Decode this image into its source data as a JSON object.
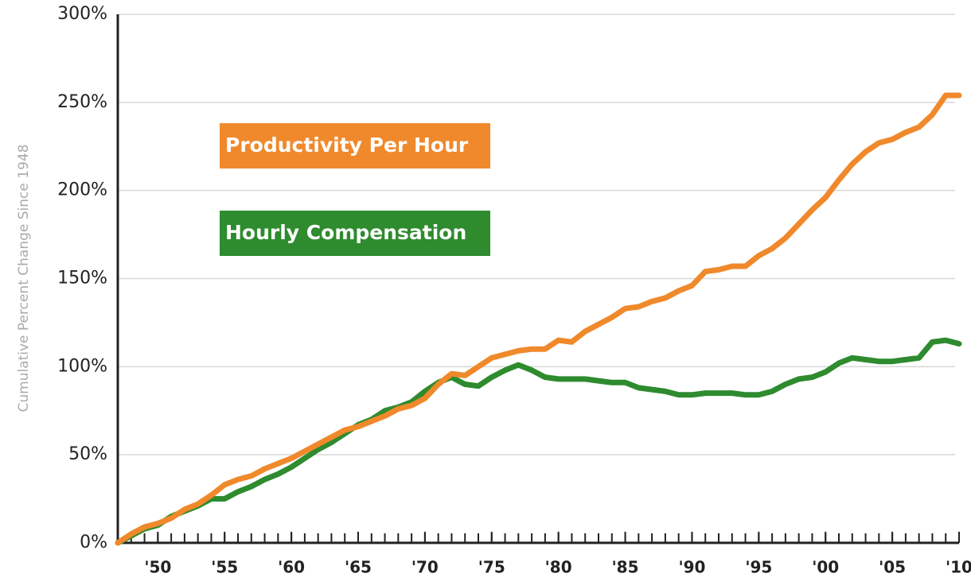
{
  "chart_data": {
    "type": "line",
    "y_label": "Cumulative Percent Change Since 1948",
    "x": [
      1947,
      1948,
      1949,
      1950,
      1951,
      1952,
      1953,
      1954,
      1955,
      1956,
      1957,
      1958,
      1959,
      1960,
      1961,
      1962,
      1963,
      1964,
      1965,
      1966,
      1967,
      1968,
      1969,
      1970,
      1971,
      1972,
      1973,
      1974,
      1975,
      1976,
      1977,
      1978,
      1979,
      1980,
      1981,
      1982,
      1983,
      1984,
      1985,
      1986,
      1987,
      1988,
      1989,
      1990,
      1991,
      1992,
      1993,
      1994,
      1995,
      1996,
      1997,
      1998,
      1999,
      2000,
      2001,
      2002,
      2003,
      2004,
      2005,
      2006,
      2007,
      2008,
      2009,
      2010
    ],
    "series": [
      {
        "name": "Productivity Per Hour",
        "color": "#f0892b",
        "values": [
          0,
          5,
          9,
          11,
          14,
          19,
          22,
          27,
          33,
          36,
          38,
          42,
          45,
          48,
          52,
          56,
          60,
          64,
          66,
          69,
          72,
          76,
          78,
          82,
          90,
          96,
          95,
          100,
          105,
          107,
          109,
          110,
          110,
          115,
          114,
          120,
          124,
          128,
          133,
          134,
          137,
          139,
          143,
          146,
          154,
          155,
          157,
          157,
          163,
          167,
          173,
          181,
          189,
          196,
          206,
          215,
          222,
          227,
          229,
          233,
          236,
          243,
          254,
          254
        ]
      },
      {
        "name": "Hourly Compensation",
        "color": "#2e8b2e",
        "values": [
          0,
          4,
          8,
          10,
          15,
          18,
          21,
          25,
          25,
          29,
          32,
          36,
          39,
          43,
          48,
          53,
          57,
          62,
          67,
          70,
          75,
          77,
          80,
          86,
          91,
          94,
          90,
          89,
          94,
          98,
          101,
          98,
          94,
          93,
          93,
          93,
          92,
          91,
          91,
          88,
          87,
          86,
          84,
          84,
          85,
          85,
          85,
          84,
          84,
          86,
          90,
          93,
          94,
          97,
          102,
          105,
          104,
          103,
          103,
          104,
          105,
          114,
          115,
          113
        ]
      }
    ],
    "xlim": [
      1947,
      2010
    ],
    "xticks": [
      {
        "value": 1950,
        "label": "'50"
      },
      {
        "value": 1955,
        "label": "'55"
      },
      {
        "value": 1960,
        "label": "'60"
      },
      {
        "value": 1965,
        "label": "'65"
      },
      {
        "value": 1970,
        "label": "'70"
      },
      {
        "value": 1975,
        "label": "'75"
      },
      {
        "value": 1980,
        "label": "'80"
      },
      {
        "value": 1985,
        "label": "'85"
      },
      {
        "value": 1990,
        "label": "'90"
      },
      {
        "value": 1995,
        "label": "'95"
      },
      {
        "value": 2000,
        "label": "'00"
      },
      {
        "value": 2005,
        "label": "'05"
      },
      {
        "value": 2010,
        "label": "'10"
      }
    ],
    "ylim": [
      0,
      300
    ],
    "yticks": [
      {
        "value": 0,
        "label": "0%"
      },
      {
        "value": 50,
        "label": "50%"
      },
      {
        "value": 100,
        "label": "100%"
      },
      {
        "value": 150,
        "label": "150%"
      },
      {
        "value": 200,
        "label": "200%"
      },
      {
        "value": 250,
        "label": "250%"
      },
      {
        "value": 300,
        "label": "300%"
      }
    ],
    "grid": true
  }
}
